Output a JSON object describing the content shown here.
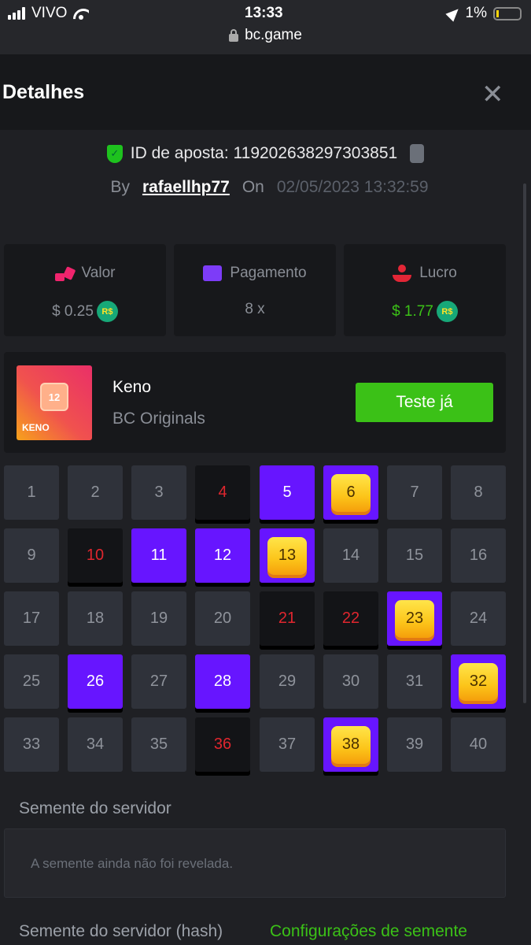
{
  "status": {
    "carrier": "VIVO",
    "time": "13:33",
    "battery": "1%",
    "url": "bc.game"
  },
  "header": {
    "title": "Detalhes",
    "close": "✕"
  },
  "bet": {
    "id_label": "ID de aposta: 119202638297303851",
    "by": "By",
    "user": "rafaellhp77",
    "on": "On",
    "datetime": "02/05/2023 13:32:59"
  },
  "stats": [
    {
      "label": "Valor",
      "value": "$ 0.25",
      "coin": "R$",
      "icon": "money-hand-icon",
      "icon_color": "#f0246d"
    },
    {
      "label": "Pagamento",
      "value": "8 x",
      "icon": "card-icon",
      "icon_color": "#7d3cf8"
    },
    {
      "label": "Lucro",
      "value": "$ 1.77",
      "coin": "R$",
      "icon": "profit-hand-icon",
      "icon_color": "#e32636",
      "value_color": "#3bc117"
    }
  ],
  "game": {
    "name": "Keno",
    "provider": "BC Originals",
    "thumb_text": "KENO",
    "thumb_number": "12",
    "button": "Teste já"
  },
  "keno": {
    "numbers": [
      1,
      2,
      3,
      4,
      5,
      6,
      7,
      8,
      9,
      10,
      11,
      12,
      13,
      14,
      15,
      16,
      17,
      18,
      19,
      20,
      21,
      22,
      23,
      24,
      25,
      26,
      27,
      28,
      29,
      30,
      31,
      32,
      33,
      34,
      35,
      36,
      37,
      38,
      39,
      40
    ],
    "picked": [
      5,
      11,
      12,
      26,
      28
    ],
    "hits": [
      6,
      13,
      23,
      32,
      38
    ],
    "drawn_not_picked": [
      4,
      10,
      21,
      22,
      36
    ]
  },
  "seed": {
    "server_label": "Semente do servidor",
    "server_value": "A semente ainda não foi revelada.",
    "hash_label": "Semente do servidor (hash)",
    "settings_link": "Configurações de semente"
  },
  "colors": {
    "accent_green": "#3bc117",
    "picked": "#6715ff",
    "drawn_text": "#e0262e"
  }
}
